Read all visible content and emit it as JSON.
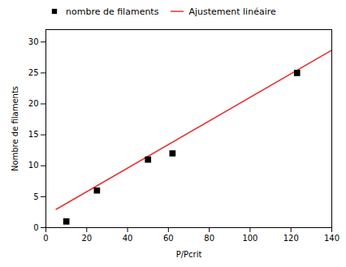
{
  "chart_data": {
    "type": "scatter",
    "xlabel": "P/Pcrit",
    "ylabel": "Nombre de filaments",
    "series": [
      {
        "name": "nombre de filaments",
        "type": "scatter",
        "x": [
          10,
          25,
          50,
          62,
          123
        ],
        "values": [
          1,
          6,
          11,
          12,
          25
        ],
        "color": "black",
        "marker": "square"
      },
      {
        "name": "Ajustement linéaire",
        "type": "line",
        "x": [
          5,
          140
        ],
        "values": [
          2.9525,
          28.67
        ],
        "color": "#e83030"
      }
    ],
    "xlim": [
      0,
      140
    ],
    "ylim": [
      0,
      32
    ],
    "xticks": [
      0,
      20,
      40,
      60,
      80,
      100,
      120,
      140
    ],
    "yticks": [
      0,
      5,
      10,
      15,
      20,
      25,
      30
    ],
    "legend": "upper left",
    "grid": false
  }
}
